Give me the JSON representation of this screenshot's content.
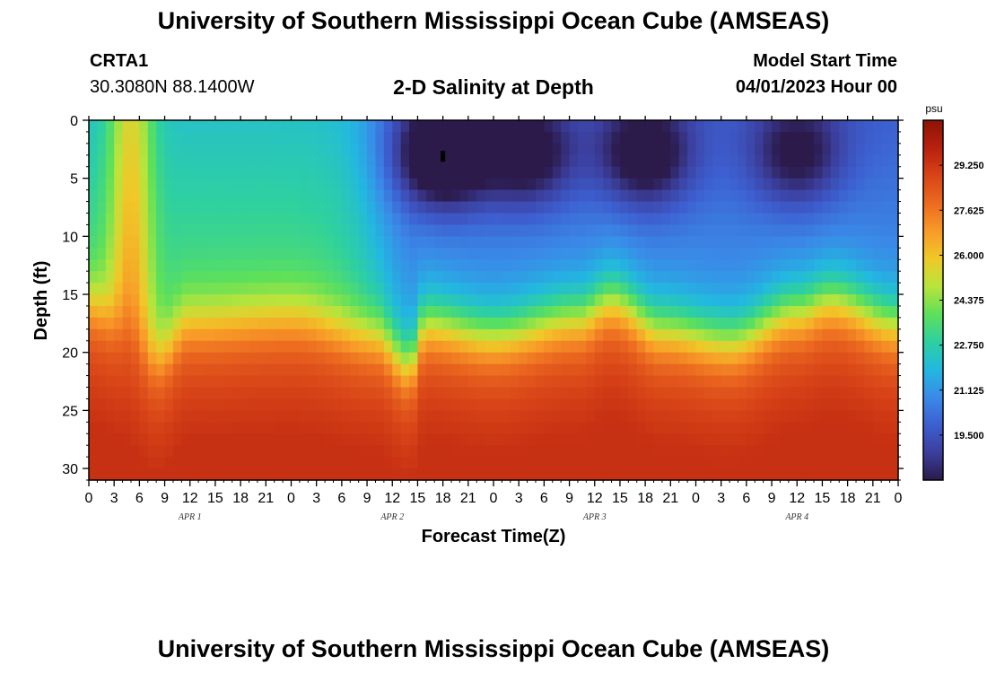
{
  "page": {
    "title": "University of Southern Mississippi Ocean Cube (AMSEAS)",
    "repeated_title": "University of Southern Mississippi Ocean Cube (AMSEAS)",
    "station_name": "CRTA1",
    "station_coords": "30.3080N  88.1400W",
    "model_start_label": "Model Start Time",
    "model_start_value": "04/01/2023 Hour 00"
  },
  "chart_data": {
    "type": "heatmap",
    "title": "2-D Salinity at Depth",
    "xlabel": "Forecast Time(Z)",
    "ylabel": "Depth (ft)",
    "x_hours_range": [
      0,
      96
    ],
    "ylim": [
      0,
      31
    ],
    "y_inverted": true,
    "x_tick_labels": [
      "0",
      "3",
      "6",
      "9",
      "12",
      "15",
      "18",
      "21",
      "0",
      "3",
      "6",
      "9",
      "12",
      "15",
      "18",
      "21",
      "0",
      "3",
      "6",
      "9",
      "12",
      "15",
      "18",
      "21",
      "0",
      "3",
      "6",
      "9",
      "12",
      "15",
      "18",
      "21",
      "0"
    ],
    "y_tick_labels": [
      "0",
      "5",
      "10",
      "15",
      "20",
      "25",
      "30"
    ],
    "day_labels": [
      {
        "label": "APR 1",
        "hour": 12
      },
      {
        "label": "APR 2",
        "hour": 36
      },
      {
        "label": "APR 3",
        "hour": 60
      },
      {
        "label": "APR 4",
        "hour": 84
      }
    ],
    "colorbar": {
      "unit": "psu",
      "min": 17.875,
      "max": 30.875,
      "tick_labels": [
        "29.250",
        "27.625",
        "26.000",
        "24.375",
        "22.750",
        "21.125",
        "19.500"
      ],
      "colors": [
        "#2b1a4a",
        "#3c3f9e",
        "#3d5fd0",
        "#3a8ae8",
        "#22b8e0",
        "#2ed0a0",
        "#5ee05a",
        "#b8e43c",
        "#f0c828",
        "#f89a28",
        "#ec6a20",
        "#d84418",
        "#b8200e",
        "#8c1406"
      ]
    },
    "salinity_model": {
      "surface_baseline_psu": 22.3,
      "bottom_psu": 29.6,
      "halocline_depth_ft": [
        {
          "hour": 0,
          "depth": 16.0
        },
        {
          "hour": 4,
          "depth": 17.5
        },
        {
          "hour": 8,
          "depth": 20.5
        },
        {
          "hour": 12,
          "depth": 17.5
        },
        {
          "hour": 24,
          "depth": 17.0
        },
        {
          "hour": 34,
          "depth": 18.5
        },
        {
          "hour": 38,
          "depth": 21.0
        },
        {
          "hour": 40,
          "depth": 17.5
        },
        {
          "hour": 48,
          "depth": 18.5
        },
        {
          "hour": 58,
          "depth": 17.0
        },
        {
          "hour": 62,
          "depth": 15.5
        },
        {
          "hour": 68,
          "depth": 18.0
        },
        {
          "hour": 76,
          "depth": 19.0
        },
        {
          "hour": 84,
          "depth": 16.5
        },
        {
          "hour": 88,
          "depth": 15.5
        },
        {
          "hour": 96,
          "depth": 17.5
        }
      ],
      "fresh_lenses": [
        {
          "hour": 42,
          "depth": 3,
          "psu_drop": 4.5
        },
        {
          "hour": 52,
          "depth": 3,
          "psu_drop": 3.0
        },
        {
          "hour": 66,
          "depth": 3,
          "psu_drop": 3.2
        },
        {
          "hour": 84,
          "depth": 3,
          "psu_drop": 2.6
        }
      ],
      "surface_salty_plume": {
        "hour": 5,
        "psu_rise": 3.2
      },
      "marker": {
        "hour": 42,
        "depth": 3.1
      }
    }
  }
}
